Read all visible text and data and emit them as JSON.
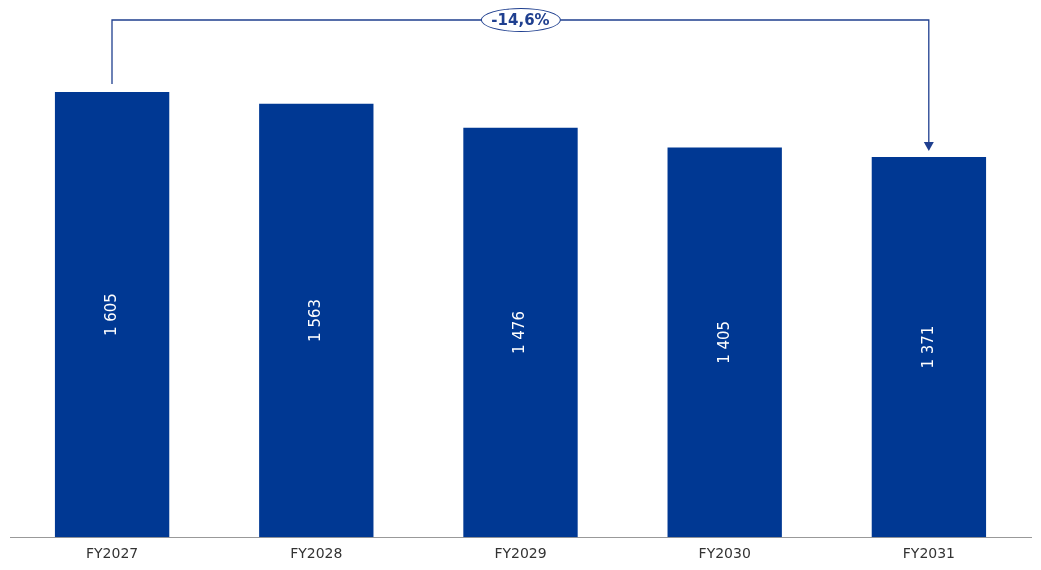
{
  "chart_data": {
    "type": "bar",
    "categories": [
      "FY2027",
      "FY2028",
      "FY2029",
      "FY2030",
      "FY2031"
    ],
    "values": [
      1605,
      1563,
      1476,
      1405,
      1371
    ],
    "value_labels": [
      "1 605",
      "1 563",
      "1 476",
      "1 405",
      "1 371"
    ],
    "color": "#003893",
    "tick_labels": "x",
    "annotations": [
      "-14,6%"
    ]
  }
}
